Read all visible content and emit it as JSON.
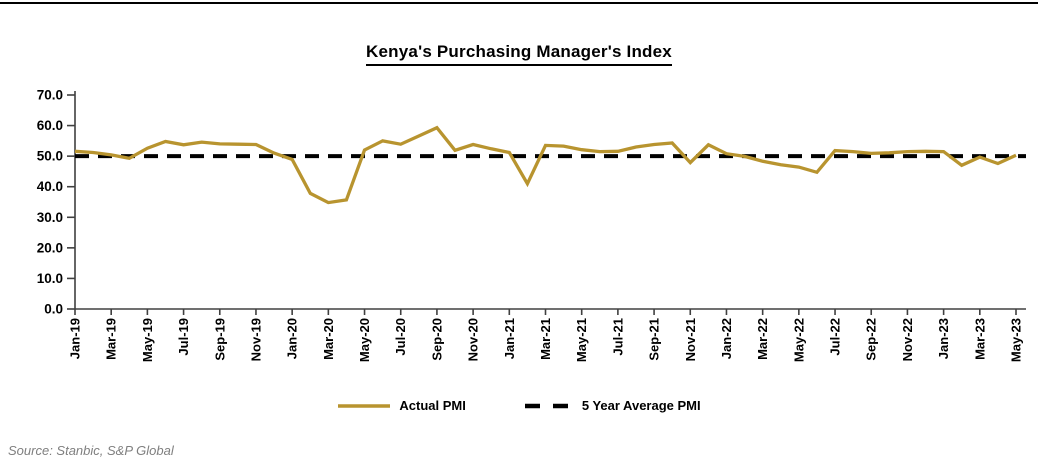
{
  "page": {
    "title": "Kenya's Purchasing Manager's Index",
    "source_note": "Source: Stanbic, S&P Global"
  },
  "colors": {
    "actual_line": "#B8942F",
    "average_line": "#000000",
    "axis": "#404040",
    "source_text": "#7f7f7f"
  },
  "legend": [
    {
      "label": "Actual PMI",
      "swatch": "solid-line"
    },
    {
      "label": "5 Year Average PMI",
      "swatch": "dashed-line"
    }
  ],
  "chart_data": {
    "type": "line",
    "title": "Kenya's Purchasing Manager's Index",
    "xlabel": "",
    "ylabel": "",
    "ylim": [
      0,
      70
    ],
    "ytick_step": 10,
    "ytick_labels": [
      "0.0",
      "10.0",
      "20.0",
      "30.0",
      "40.0",
      "50.0",
      "60.0",
      "70.0"
    ],
    "grid": false,
    "legend_position": "bottom",
    "x": [
      "Jan-19",
      "Feb-19",
      "Mar-19",
      "Apr-19",
      "May-19",
      "Jun-19",
      "Jul-19",
      "Aug-19",
      "Sep-19",
      "Oct-19",
      "Nov-19",
      "Dec-19",
      "Jan-20",
      "Feb-20",
      "Mar-20",
      "Apr-20",
      "May-20",
      "Jun-20",
      "Jul-20",
      "Aug-20",
      "Sep-20",
      "Oct-20",
      "Nov-20",
      "Dec-20",
      "Jan-21",
      "Feb-21",
      "Mar-21",
      "Apr-21",
      "May-21",
      "Jun-21",
      "Jul-21",
      "Aug-21",
      "Sep-21",
      "Oct-21",
      "Nov-21",
      "Dec-21",
      "Jan-22",
      "Feb-22",
      "Mar-22",
      "Apr-22",
      "May-22",
      "Jun-22",
      "Jul-22",
      "Aug-22",
      "Sep-22",
      "Oct-22",
      "Nov-22",
      "Dec-22",
      "Jan-23",
      "Feb-23",
      "Mar-23",
      "Apr-23",
      "May-23"
    ],
    "x_tick_labels": [
      "Jan-19",
      "Mar-19",
      "May-19",
      "Jul-19",
      "Sep-19",
      "Nov-19",
      "Jan-20",
      "Mar-20",
      "May-20",
      "Jul-20",
      "Sep-20",
      "Nov-20",
      "Jan-21",
      "Mar-21",
      "May-21",
      "Jul-21",
      "Sep-21",
      "Nov-21",
      "Jan-22",
      "Mar-22",
      "May-22",
      "Jul-22",
      "Sep-22",
      "Nov-22",
      "Jan-23",
      "Mar-23",
      "May-23"
    ],
    "x_tick_interval": 2,
    "series": [
      {
        "name": "Actual PMI",
        "values": [
          51.6,
          51.2,
          50.4,
          49.3,
          52.6,
          54.8,
          53.7,
          54.6,
          54.0,
          53.9,
          53.8,
          51.0,
          48.9,
          37.8,
          34.8,
          35.7,
          52.0,
          55.0,
          53.9,
          56.6,
          59.3,
          51.9,
          53.8,
          52.4,
          51.2,
          41.0,
          53.5,
          53.3,
          52.1,
          51.5,
          51.6,
          53.0,
          53.8,
          54.3,
          47.9,
          53.7,
          50.8,
          49.9,
          48.3,
          47.2,
          46.4,
          44.7,
          51.8,
          51.5,
          50.9,
          51.1,
          51.5,
          51.6,
          51.5,
          47.0,
          49.7,
          47.6,
          50.3
        ]
      },
      {
        "name": "5 Year Average PMI",
        "constant": 50.0
      }
    ]
  }
}
